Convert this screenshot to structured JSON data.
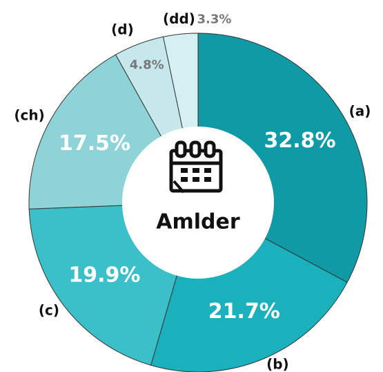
{
  "chart_data": {
    "type": "donut",
    "center_label": "Amlder",
    "categories": [
      "(a)",
      "(b)",
      "(c)",
      "(ch)",
      "(d)",
      "(dd)"
    ],
    "values": [
      32.8,
      21.7,
      19.9,
      17.5,
      4.8,
      3.3
    ],
    "value_labels": [
      "32.8%",
      "21.7%",
      "19.9%",
      "17.5%",
      "4.8%",
      "3.3%"
    ],
    "colors": [
      "#0f9aa6",
      "#1ab0bc",
      "#3bc0c9",
      "#8ed3d8",
      "#c6e8ec",
      "#d6eff2"
    ]
  }
}
